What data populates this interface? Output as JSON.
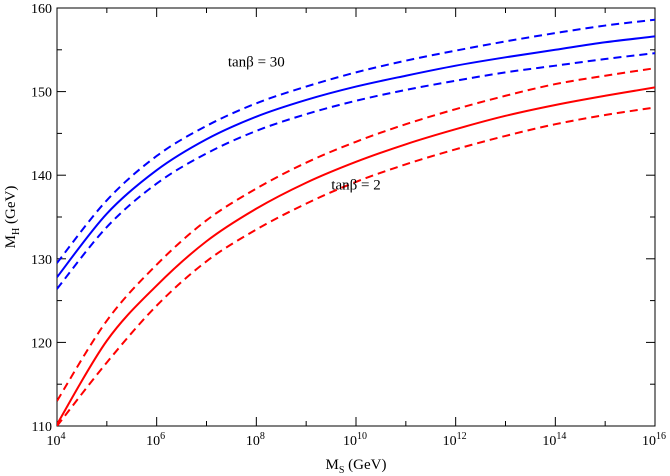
{
  "chart_data": {
    "type": "line",
    "x_scale": "log10",
    "xlim": [
      10000,
      10000000000000000
    ],
    "ylim": [
      110,
      160
    ],
    "x_ticks": [
      {
        "value": 10000,
        "base": "10",
        "exp": "4"
      },
      {
        "value": 1000000,
        "base": "10",
        "exp": "6"
      },
      {
        "value": 100000000,
        "base": "10",
        "exp": "8"
      },
      {
        "value": 10000000000,
        "base": "10",
        "exp": "10"
      },
      {
        "value": 1000000000000,
        "base": "10",
        "exp": "12"
      },
      {
        "value": 100000000000000,
        "base": "10",
        "exp": "14"
      },
      {
        "value": 10000000000000000,
        "base": "10",
        "exp": "16"
      }
    ],
    "y_ticks": [
      "110",
      "120",
      "130",
      "140",
      "150",
      "160"
    ],
    "xlabel": {
      "main": "M",
      "sub": "S",
      "rest": " (GeV)"
    },
    "ylabel": {
      "main": "M",
      "sub": "H",
      "rest": " (GeV)"
    },
    "grid": false,
    "x": [
      10000,
      100000,
      1000000,
      10000000,
      100000000,
      1000000000,
      10000000000,
      100000000000,
      1000000000000,
      10000000000000,
      100000000000000,
      1000000000000000,
      10000000000000000
    ],
    "series": [
      {
        "group": "tanb30",
        "style": "dashed",
        "color": "#0000ff",
        "values": [
          129.5,
          137.0,
          142.3,
          145.9,
          148.6,
          150.6,
          152.3,
          153.7,
          154.9,
          156.0,
          157.0,
          157.9,
          158.6
        ]
      },
      {
        "group": "tanb30",
        "style": "solid",
        "color": "#0000ff",
        "values": [
          127.8,
          135.4,
          140.6,
          144.3,
          147.0,
          149.0,
          150.6,
          151.9,
          153.1,
          154.1,
          155.0,
          155.9,
          156.6
        ]
      },
      {
        "group": "tanb30",
        "style": "dashed",
        "color": "#0000ff",
        "values": [
          126.4,
          133.8,
          139.0,
          142.6,
          145.3,
          147.3,
          148.9,
          150.2,
          151.3,
          152.3,
          153.1,
          153.9,
          154.6
        ]
      },
      {
        "group": "tanb2",
        "style": "dashed",
        "color": "#ff0000",
        "values": [
          113.0,
          122.6,
          129.3,
          134.6,
          138.4,
          141.5,
          144.0,
          146.1,
          147.9,
          149.5,
          150.9,
          151.9,
          152.8
        ]
      },
      {
        "group": "tanb2",
        "style": "solid",
        "color": "#ff0000",
        "values": [
          110.2,
          120.2,
          126.8,
          132.1,
          136.0,
          139.1,
          141.6,
          143.7,
          145.5,
          147.1,
          148.4,
          149.5,
          150.5
        ]
      },
      {
        "group": "tanb2",
        "style": "dashed",
        "color": "#ff0000",
        "values": [
          110.0,
          117.6,
          124.4,
          129.7,
          133.5,
          136.6,
          139.2,
          141.3,
          143.1,
          144.7,
          146.1,
          147.2,
          148.1
        ]
      }
    ],
    "annotations": [
      {
        "text": "tanβ = 30",
        "x": 100000000,
        "y": 153.0
      },
      {
        "text": "tanβ = 2",
        "x": 10000000000,
        "y": 138.3
      }
    ]
  }
}
